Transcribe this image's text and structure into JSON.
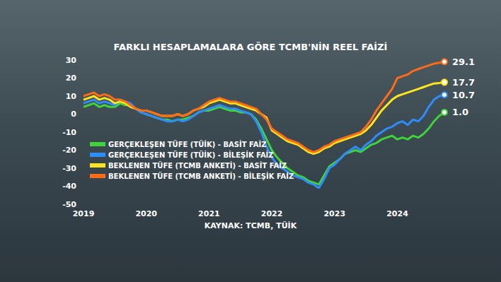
{
  "chart_data": {
    "type": "line",
    "title": "FARKLI HESAPLAMALARA GÖRE TCMB'NİN REEL FAİZİ",
    "annotations": [
      "KAYNAK: TCMB, TÜİK"
    ],
    "categories": [
      "2019",
      null,
      null,
      null,
      null,
      null,
      null,
      null,
      null,
      null,
      null,
      null,
      "2020",
      null,
      null,
      null,
      null,
      null,
      null,
      null,
      null,
      null,
      null,
      null,
      "2021",
      null,
      null,
      null,
      null,
      null,
      null,
      null,
      null,
      null,
      null,
      null,
      "2022",
      null,
      null,
      null,
      null,
      null,
      null,
      null,
      null,
      null,
      null,
      null,
      "2023",
      null,
      null,
      null,
      null,
      null,
      null,
      null,
      null,
      null,
      null,
      null,
      "2024",
      null,
      null,
      null,
      null,
      null,
      null,
      null,
      null,
      null
    ],
    "ylim": [
      -50,
      30
    ],
    "yticks": [
      -50,
      -40,
      -30,
      -20,
      -10,
      0,
      10,
      20,
      30
    ],
    "grid": false,
    "legend": "lower left",
    "series": [
      {
        "name": "GERÇEKLEŞEN TÜFE (TÜİK) - BASİT FAİZ",
        "color": "#3ed43a",
        "values": [
          4,
          5,
          6,
          4,
          5,
          4,
          4,
          6,
          5,
          5,
          3,
          1,
          0,
          -1,
          -2,
          -3,
          -3,
          -4,
          -3,
          -3,
          -2,
          -1,
          1,
          2,
          2,
          3,
          4,
          3,
          2,
          2,
          1,
          1,
          0,
          -3,
          -8,
          -14,
          -20,
          -24,
          -27,
          -30,
          -32,
          -34,
          -35,
          -37,
          -38,
          -39,
          -34,
          -29,
          -27,
          -25,
          -22,
          -21,
          -20,
          -21,
          -19,
          -17,
          -16,
          -14,
          -13,
          -12,
          -14,
          -13,
          -14,
          -12,
          -13,
          -11,
          -8,
          -4,
          -1,
          1.0
        ],
        "value_labels": [
          null,
          null,
          null,
          null,
          null,
          null,
          null,
          null,
          null,
          null,
          null,
          null,
          null,
          null,
          null,
          null,
          null,
          null,
          null,
          null,
          null,
          null,
          null,
          null,
          null,
          null,
          null,
          null,
          null,
          null,
          null,
          null,
          null,
          null,
          null,
          null,
          null,
          null,
          null,
          null,
          null,
          null,
          null,
          null,
          null,
          null,
          null,
          null,
          null,
          null,
          null,
          null,
          null,
          null,
          null,
          null,
          null,
          null,
          null,
          null,
          null,
          null,
          null,
          null,
          null,
          null,
          null,
          null,
          null,
          "1.0"
        ]
      },
      {
        "name": "GERÇEKLEŞEN TÜFE (TÜİK) - BİLEŞİK FAİZ",
        "color": "#2f8cff",
        "values": [
          6,
          7,
          8,
          6,
          7,
          6,
          5,
          8,
          7,
          6,
          3,
          1,
          0,
          -1,
          -2,
          -3,
          -4,
          -4,
          -3,
          -4,
          -3,
          -1,
          1,
          2,
          3,
          4,
          5,
          4,
          3,
          3,
          2,
          1,
          0,
          -4,
          -10,
          -18,
          -24,
          -28,
          -30,
          -32,
          -34,
          -35,
          -36,
          -38,
          -39,
          -41,
          -36,
          -30,
          -28,
          -25,
          -22,
          -20,
          -18,
          -20,
          -17,
          -15,
          -12,
          -10,
          -8,
          -7,
          -5,
          -4,
          -6,
          -3,
          -4,
          -1,
          4,
          8,
          10,
          10.7
        ],
        "value_labels": [
          null,
          null,
          null,
          null,
          null,
          null,
          null,
          null,
          null,
          null,
          null,
          null,
          null,
          null,
          null,
          null,
          null,
          null,
          null,
          null,
          null,
          null,
          null,
          null,
          null,
          null,
          null,
          null,
          null,
          null,
          null,
          null,
          null,
          null,
          null,
          null,
          null,
          null,
          null,
          null,
          null,
          null,
          null,
          null,
          null,
          null,
          null,
          null,
          null,
          null,
          null,
          null,
          null,
          null,
          null,
          null,
          null,
          null,
          null,
          null,
          null,
          null,
          null,
          null,
          null,
          null,
          null,
          null,
          null,
          "10.7"
        ]
      },
      {
        "name": "BEKLENEN TÜFE (TCMB ANKETİ) - BASİT FAİZ",
        "color": "#ffe61c",
        "values": [
          8,
          9,
          10,
          8,
          9,
          8,
          6,
          7,
          6,
          4,
          3,
          2,
          2,
          1,
          0,
          -1,
          -1,
          -1,
          0,
          -1,
          0,
          2,
          3,
          4,
          6,
          7,
          8,
          7,
          6,
          6,
          5,
          4,
          3,
          2,
          0,
          -2,
          -9,
          -11,
          -13,
          -15,
          -16,
          -17,
          -19,
          -21,
          -22,
          -21,
          -19,
          -18,
          -16,
          -15,
          -14,
          -13,
          -12,
          -11,
          -9,
          -6,
          -2,
          2,
          5,
          8,
          10,
          11,
          12,
          13,
          14,
          15,
          16,
          17,
          17.3,
          17.7
        ],
        "value_labels": [
          null,
          null,
          null,
          null,
          null,
          null,
          null,
          null,
          null,
          null,
          null,
          null,
          null,
          null,
          null,
          null,
          null,
          null,
          null,
          null,
          null,
          null,
          null,
          null,
          null,
          null,
          null,
          null,
          null,
          null,
          null,
          null,
          null,
          null,
          null,
          null,
          null,
          null,
          null,
          null,
          null,
          null,
          null,
          null,
          null,
          null,
          null,
          null,
          null,
          null,
          null,
          null,
          null,
          null,
          null,
          null,
          null,
          null,
          null,
          null,
          null,
          null,
          null,
          null,
          null,
          null,
          null,
          null,
          null,
          "17.7"
        ]
      },
      {
        "name": "BEKLENEN TÜFE (TCMB ANKETİ) - BİLEŞİK FAİZ",
        "color": "#ff6b17",
        "values": [
          10,
          11,
          12,
          10,
          11,
          10,
          8,
          8,
          7,
          5,
          3,
          2,
          2,
          1,
          0,
          -1,
          -1,
          -1,
          0,
          -1,
          0,
          2,
          3,
          5,
          7,
          8,
          9,
          8,
          7,
          7,
          6,
          5,
          4,
          3,
          0,
          -3,
          -8,
          -10,
          -12,
          -14,
          -15,
          -16,
          -18,
          -20,
          -21,
          -20,
          -18,
          -17,
          -15,
          -14,
          -13,
          -12,
          -11,
          -10,
          -7,
          -3,
          2,
          6,
          10,
          14,
          20,
          21,
          22,
          24,
          25,
          26,
          27,
          28,
          28.5,
          29.1
        ],
        "value_labels": [
          null,
          null,
          null,
          null,
          null,
          null,
          null,
          null,
          null,
          null,
          null,
          null,
          null,
          null,
          null,
          null,
          null,
          null,
          null,
          null,
          null,
          null,
          null,
          null,
          null,
          null,
          null,
          null,
          null,
          null,
          null,
          null,
          null,
          null,
          null,
          null,
          null,
          null,
          null,
          null,
          null,
          null,
          null,
          null,
          null,
          null,
          null,
          null,
          null,
          null,
          null,
          null,
          null,
          null,
          null,
          null,
          null,
          null,
          null,
          null,
          null,
          null,
          null,
          null,
          null,
          null,
          null,
          null,
          null,
          "29.1"
        ]
      }
    ]
  }
}
